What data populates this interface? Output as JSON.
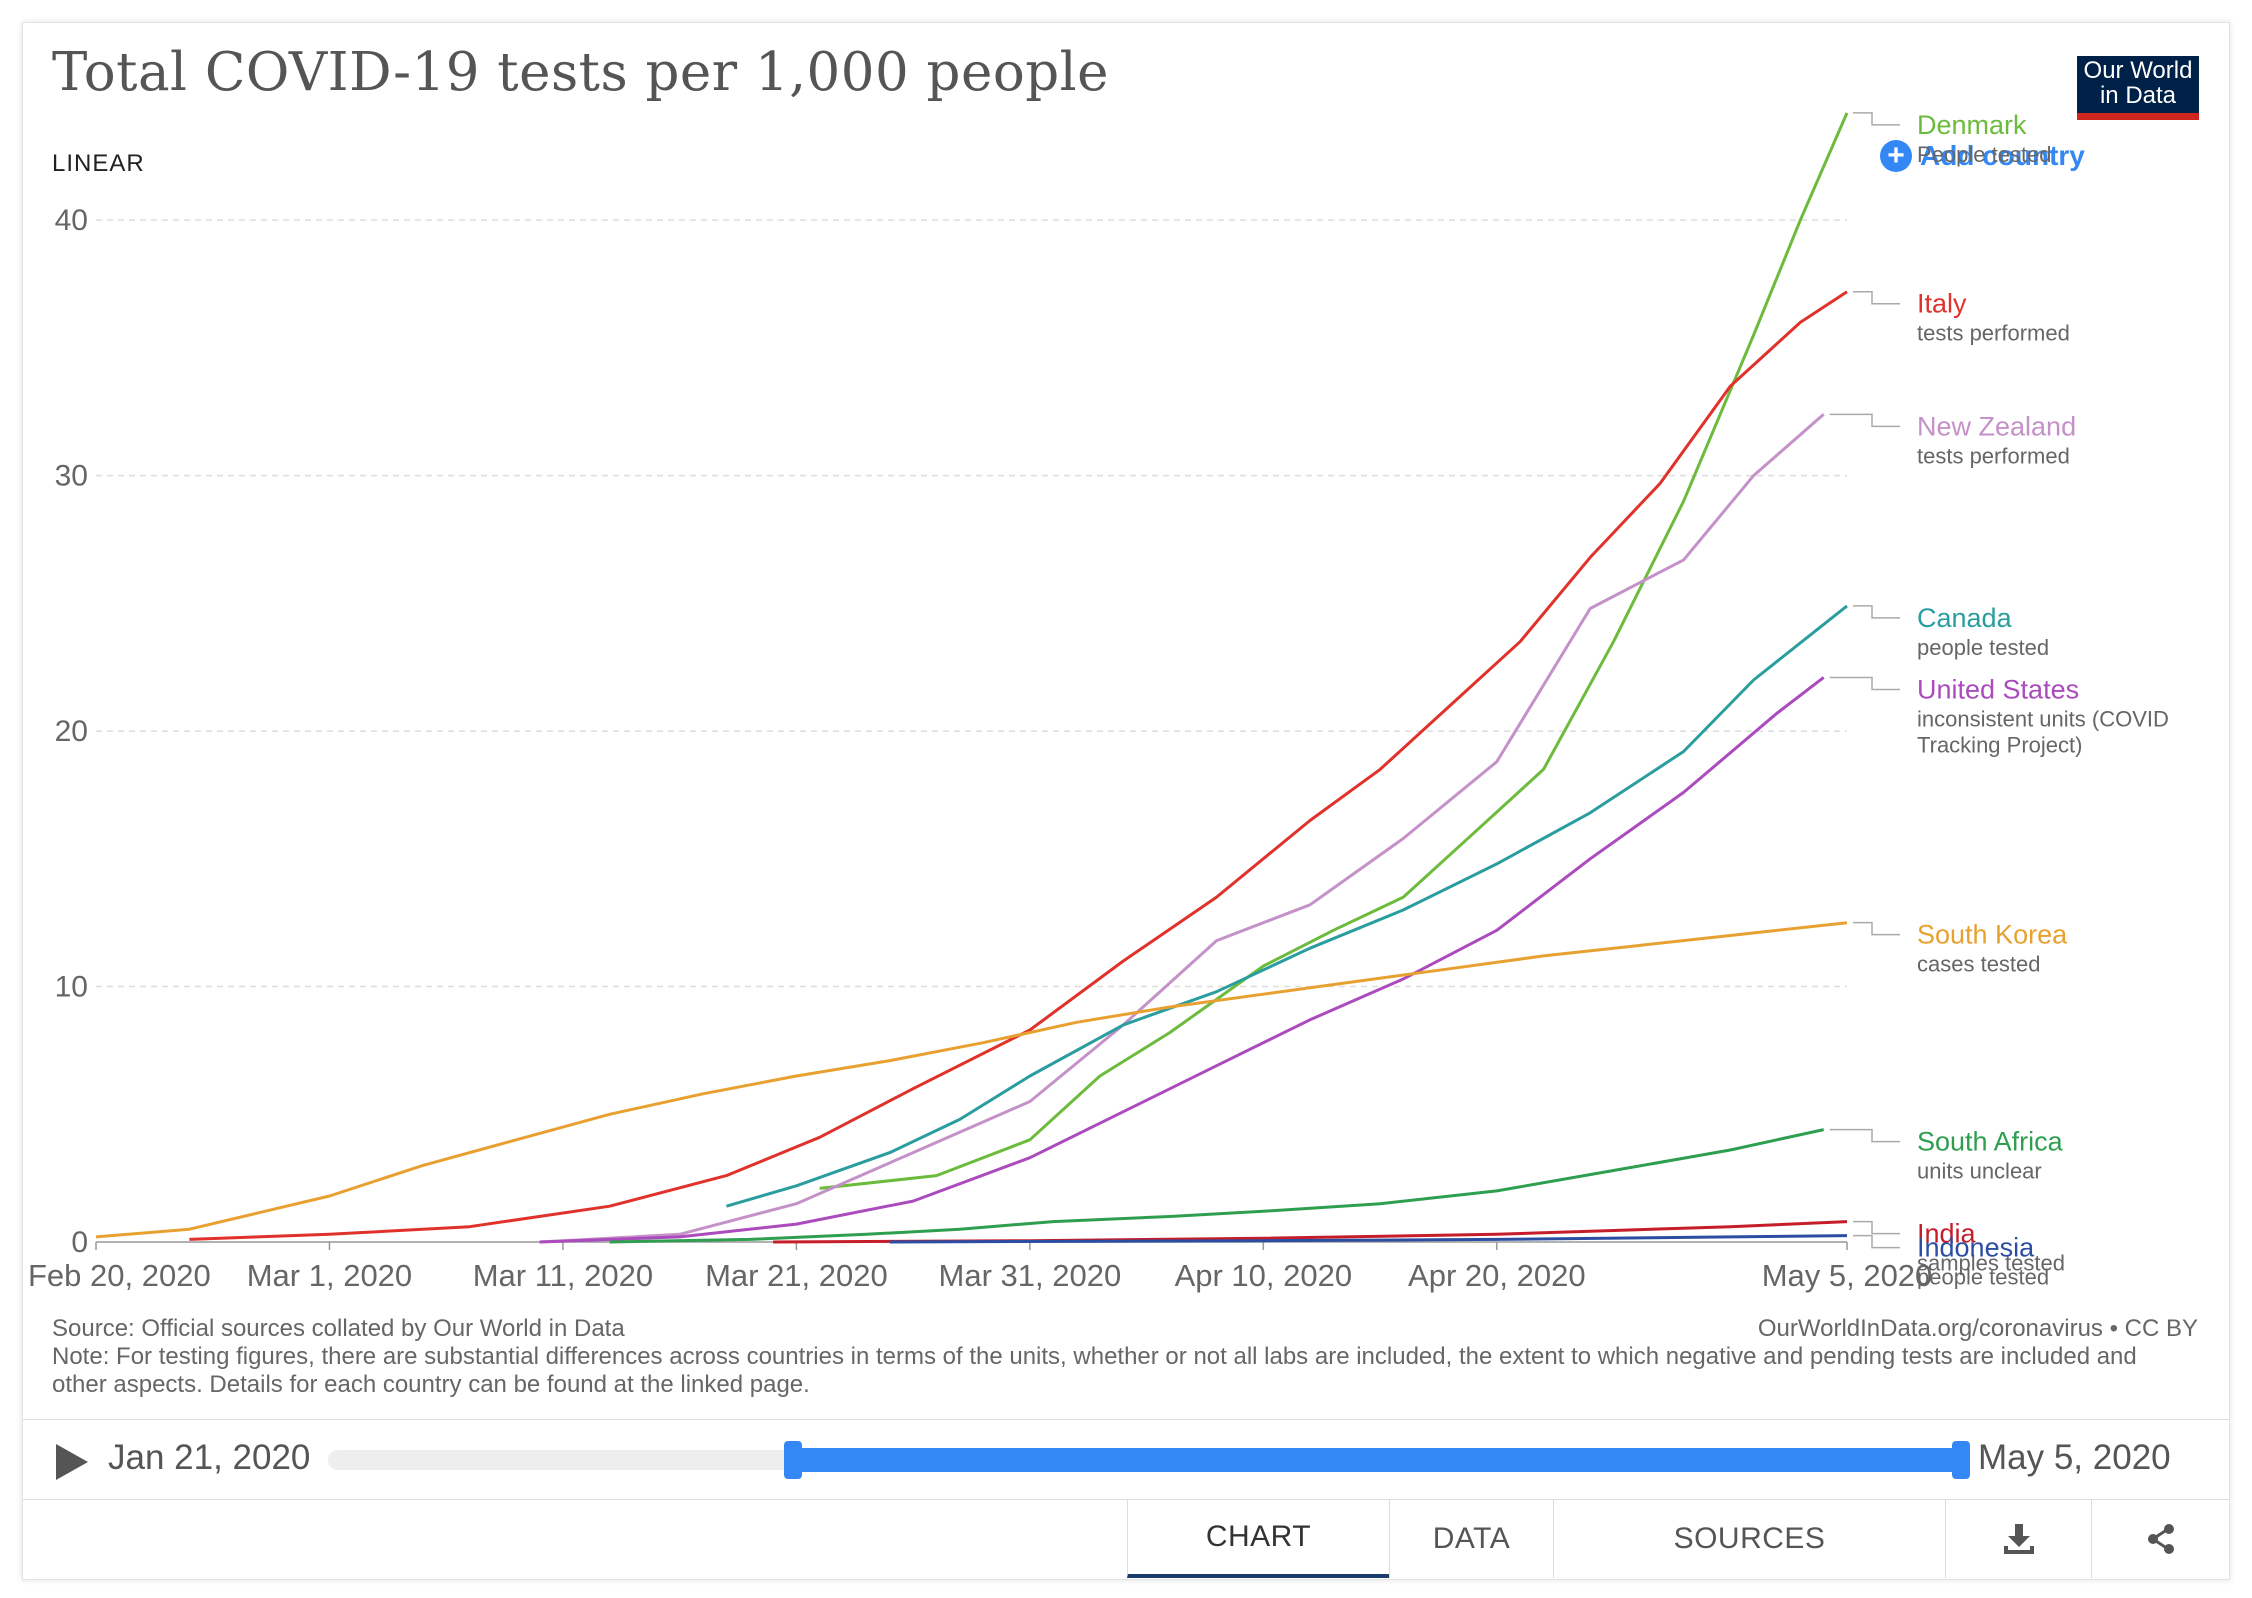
{
  "header": {
    "title": "Total COVID-19 tests per 1,000 people",
    "logo_line1": "Our World",
    "logo_line2": "in Data",
    "scale_label": "LINEAR",
    "add_country": "Add country"
  },
  "footer": {
    "source": "Source: Official sources collated by Our World in Data",
    "note": "Note: For testing figures, there are substantial differences across countries in terms of the units, whether or not all labs are included, the extent to which negative and pending tests are included and other aspects. Details for each country can be found at the linked page.",
    "credit": "OurWorldInData.org/coronavirus • CC BY"
  },
  "timeline": {
    "start_label": "Jan 21, 2020",
    "end_label": "May 5, 2020"
  },
  "tabs": {
    "chart": "CHART",
    "data": "DATA",
    "sources": "SOURCES"
  },
  "chart_data": {
    "type": "line",
    "title": "Total COVID-19 tests per 1,000 people",
    "xlabel": "",
    "ylabel": "",
    "x_range": [
      "2020-02-20",
      "2020-05-05"
    ],
    "ylim": [
      0,
      44
    ],
    "yticks": [
      0,
      10,
      20,
      30,
      40
    ],
    "xticks": [
      {
        "date": "2020-02-20",
        "label": "Feb 20, 2020"
      },
      {
        "date": "2020-03-01",
        "label": "Mar 1, 2020"
      },
      {
        "date": "2020-03-11",
        "label": "Mar 11, 2020"
      },
      {
        "date": "2020-03-21",
        "label": "Mar 21, 2020"
      },
      {
        "date": "2020-03-31",
        "label": "Mar 31, 2020"
      },
      {
        "date": "2020-04-10",
        "label": "Apr 10, 2020"
      },
      {
        "date": "2020-04-20",
        "label": "Apr 20, 2020"
      },
      {
        "date": "2020-05-05",
        "label": "May 5, 2020"
      }
    ],
    "grid": "horizontal dashed",
    "legend": "right, end-of-line labels",
    "series": [
      {
        "name": "Denmark",
        "unit": "People tested",
        "color": "#6cbb3c",
        "label_y": 44.2,
        "x": [
          "2020-03-22",
          "2020-03-27",
          "2020-03-31",
          "2020-04-03",
          "2020-04-06",
          "2020-04-10",
          "2020-04-13",
          "2020-04-16",
          "2020-04-19",
          "2020-04-22",
          "2020-04-25",
          "2020-04-28",
          "2020-05-01",
          "2020-05-03",
          "2020-05-05"
        ],
        "y": [
          2.1,
          2.6,
          4.0,
          6.5,
          8.2,
          10.8,
          12.2,
          13.5,
          16.0,
          18.5,
          23.5,
          29.0,
          35.5,
          40.0,
          44.2
        ]
      },
      {
        "name": "Italy",
        "unit": "tests performed",
        "color": "#e0312b",
        "label_y": 37.2,
        "x": [
          "2020-02-24",
          "2020-03-01",
          "2020-03-07",
          "2020-03-13",
          "2020-03-18",
          "2020-03-22",
          "2020-03-26",
          "2020-03-31",
          "2020-04-04",
          "2020-04-08",
          "2020-04-12",
          "2020-04-15",
          "2020-04-18",
          "2020-04-21",
          "2020-04-24",
          "2020-04-27",
          "2020-04-30",
          "2020-05-03",
          "2020-05-05"
        ],
        "y": [
          0.1,
          0.3,
          0.6,
          1.4,
          2.6,
          4.1,
          6.0,
          8.3,
          11.0,
          13.5,
          16.5,
          18.5,
          21.0,
          23.5,
          26.8,
          29.7,
          33.5,
          36.0,
          37.2
        ]
      },
      {
        "name": "New Zealand",
        "unit": "tests performed",
        "color": "#c491c8",
        "label_y": 32.4,
        "x": [
          "2020-03-10",
          "2020-03-16",
          "2020-03-21",
          "2020-03-26",
          "2020-03-31",
          "2020-04-04",
          "2020-04-08",
          "2020-04-12",
          "2020-04-16",
          "2020-04-20",
          "2020-04-24",
          "2020-04-28",
          "2020-05-01",
          "2020-05-04"
        ],
        "y": [
          0.0,
          0.3,
          1.5,
          3.5,
          5.5,
          8.5,
          11.8,
          13.2,
          15.8,
          18.8,
          24.8,
          26.7,
          30.0,
          32.4
        ]
      },
      {
        "name": "Canada",
        "unit": "people tested",
        "color": "#2a9d9f",
        "label_y": 24.9,
        "x": [
          "2020-03-18",
          "2020-03-21",
          "2020-03-25",
          "2020-03-28",
          "2020-03-31",
          "2020-04-04",
          "2020-04-08",
          "2020-04-12",
          "2020-04-16",
          "2020-04-20",
          "2020-04-24",
          "2020-04-28",
          "2020-05-01",
          "2020-05-05"
        ],
        "y": [
          1.4,
          2.2,
          3.5,
          4.8,
          6.5,
          8.5,
          9.8,
          11.5,
          13.0,
          14.8,
          16.8,
          19.2,
          22.0,
          24.9
        ]
      },
      {
        "name": "United States",
        "unit": "inconsistent units (COVID Tracking Project)",
        "color": "#ab4bbd",
        "label_y": 22.1,
        "x": [
          "2020-03-10",
          "2020-03-16",
          "2020-03-21",
          "2020-03-26",
          "2020-03-31",
          "2020-04-04",
          "2020-04-08",
          "2020-04-12",
          "2020-04-16",
          "2020-04-20",
          "2020-04-24",
          "2020-04-28",
          "2020-05-02",
          "2020-05-04"
        ],
        "y": [
          0.0,
          0.2,
          0.7,
          1.6,
          3.3,
          5.1,
          6.9,
          8.7,
          10.3,
          12.2,
          15.0,
          17.6,
          20.7,
          22.1
        ]
      },
      {
        "name": "South Korea",
        "unit": "cases tested",
        "color": "#e8a130",
        "label_y": 12.5,
        "x": [
          "2020-02-20",
          "2020-02-24",
          "2020-03-01",
          "2020-03-05",
          "2020-03-09",
          "2020-03-13",
          "2020-03-17",
          "2020-03-21",
          "2020-03-25",
          "2020-03-29",
          "2020-04-02",
          "2020-04-06",
          "2020-04-10",
          "2020-04-14",
          "2020-04-18",
          "2020-04-22",
          "2020-04-26",
          "2020-04-30",
          "2020-05-05"
        ],
        "y": [
          0.2,
          0.5,
          1.8,
          3.0,
          4.0,
          5.0,
          5.8,
          6.5,
          7.1,
          7.8,
          8.6,
          9.2,
          9.7,
          10.2,
          10.7,
          11.2,
          11.6,
          12.0,
          12.5
        ]
      },
      {
        "name": "South Africa",
        "unit": "units unclear",
        "color": "#2e9e4f",
        "label_y": 4.4,
        "x": [
          "2020-03-13",
          "2020-03-19",
          "2020-03-24",
          "2020-03-28",
          "2020-04-01",
          "2020-04-06",
          "2020-04-10",
          "2020-04-15",
          "2020-04-20",
          "2020-04-25",
          "2020-04-30",
          "2020-05-04"
        ],
        "y": [
          0.0,
          0.1,
          0.3,
          0.5,
          0.8,
          1.0,
          1.2,
          1.5,
          2.0,
          2.8,
          3.6,
          4.4
        ]
      },
      {
        "name": "India",
        "unit": "samples tested",
        "color": "#c61d2a",
        "label_y": 0.8,
        "x": [
          "2020-03-20",
          "2020-03-31",
          "2020-04-10",
          "2020-04-20",
          "2020-04-25",
          "2020-04-30",
          "2020-05-05"
        ],
        "y": [
          0.0,
          0.05,
          0.15,
          0.3,
          0.45,
          0.6,
          0.8
        ]
      },
      {
        "name": "Indonesia",
        "unit": "people tested",
        "color": "#2b4ea2",
        "label_y": 0.25,
        "x": [
          "2020-03-25",
          "2020-04-10",
          "2020-04-20",
          "2020-04-30",
          "2020-05-05"
        ],
        "y": [
          0.0,
          0.05,
          0.1,
          0.2,
          0.25
        ]
      }
    ]
  }
}
